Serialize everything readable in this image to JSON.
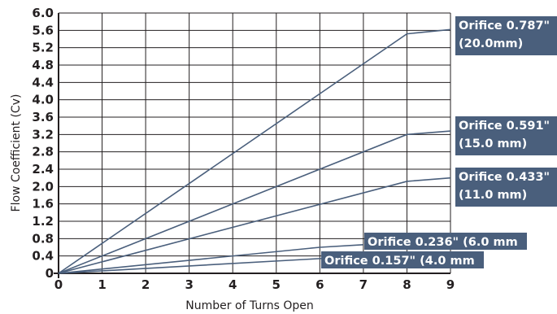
{
  "chart_data": {
    "type": "line",
    "xlabel": "Number of Turns Open",
    "ylabel": "Flow Coefficient (Cv)",
    "xlim": [
      0,
      9
    ],
    "ylim": [
      0,
      6.0
    ],
    "x_ticks": [
      "0",
      "1",
      "2",
      "3",
      "4",
      "5",
      "6",
      "7",
      "8",
      "9"
    ],
    "y_ticks": [
      "0",
      "0.4",
      "0.8",
      "1.2",
      "1.6",
      "2.0",
      "2.4",
      "2.8",
      "3.2",
      "3.6",
      "4.0",
      "4.4",
      "4.8",
      "5.2",
      "5.6",
      "6.0"
    ],
    "grid": true,
    "series": [
      {
        "name": "Orifice 0.787\" (20.0mm)",
        "label_lines": [
          "Orifice 0.787\"",
          "(20.0mm)"
        ],
        "x": [
          0,
          8,
          9
        ],
        "y": [
          0,
          5.52,
          5.62
        ]
      },
      {
        "name": "Orifice 0.591\" (15.0 mm)",
        "label_lines": [
          "Orifice 0.591\"",
          "(15.0 mm)"
        ],
        "x": [
          0,
          8,
          9
        ],
        "y": [
          0,
          3.2,
          3.28
        ]
      },
      {
        "name": "Orifice 0.433\" (11.0 mm)",
        "label_lines": [
          "Orifice 0.433\"",
          "(11.0 mm)"
        ],
        "x": [
          0,
          8,
          9
        ],
        "y": [
          0,
          2.12,
          2.2
        ]
      },
      {
        "name": "Orifice 0.236\" (6.0 mm",
        "label_lines": [
          "Orifice 0.236\" (6.0 mm"
        ],
        "x": [
          0,
          6,
          7
        ],
        "y": [
          0,
          0.6,
          0.66
        ]
      },
      {
        "name": "Orifice 0.157\" (4.0 mm",
        "label_lines": [
          "Orifice 0.157\" (4.0 mm"
        ],
        "x": [
          0,
          6,
          6.6
        ],
        "y": [
          0,
          0.34,
          0.36
        ]
      }
    ],
    "colors": {
      "line": "#4a5f7c",
      "label_bg": "#4a5f7c",
      "grid": "#231f20",
      "text": "#231f20"
    }
  }
}
